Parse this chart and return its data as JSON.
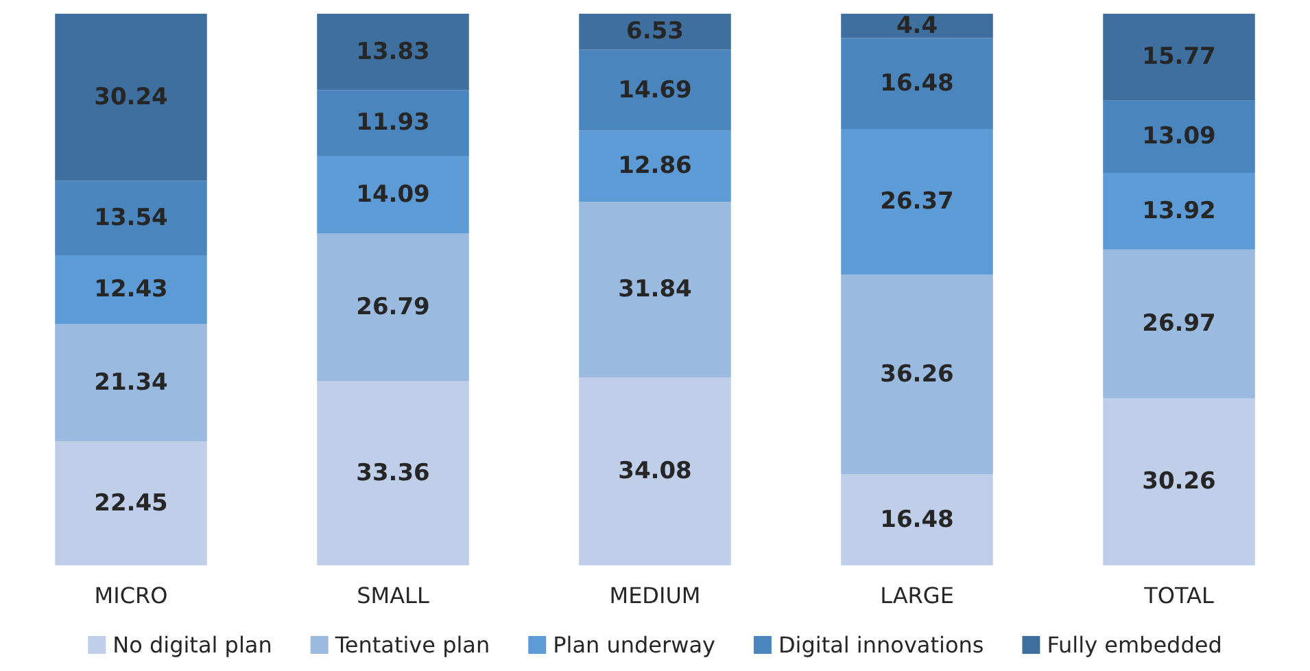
{
  "chart_data": {
    "type": "bar",
    "stacked": true,
    "categories": [
      "MICRO",
      "SMALL",
      "MEDIUM",
      "LARGE",
      "TOTAL"
    ],
    "series": [
      {
        "name": "No digital plan",
        "color": "#bfcfe9",
        "values": [
          22.45,
          33.36,
          34.08,
          16.48,
          30.26
        ]
      },
      {
        "name": "Tentative plan",
        "color": "#9bbae0",
        "values": [
          21.34,
          26.79,
          31.84,
          36.26,
          26.97
        ]
      },
      {
        "name": "Plan underway",
        "color": "#5d9bd6",
        "values": [
          12.43,
          14.09,
          12.86,
          26.37,
          13.92
        ]
      },
      {
        "name": "Digital innovations",
        "color": "#4b85bd",
        "values": [
          13.54,
          11.93,
          14.69,
          16.48,
          13.09
        ]
      },
      {
        "name": "Fully embedded",
        "color": "#3f6f9f",
        "values": [
          30.24,
          13.83,
          6.53,
          4.4,
          15.77
        ]
      }
    ],
    "ylim": [
      0,
      100
    ],
    "tick_labels": "x",
    "data_labels": true,
    "legend": "bottom",
    "grid": false
  }
}
